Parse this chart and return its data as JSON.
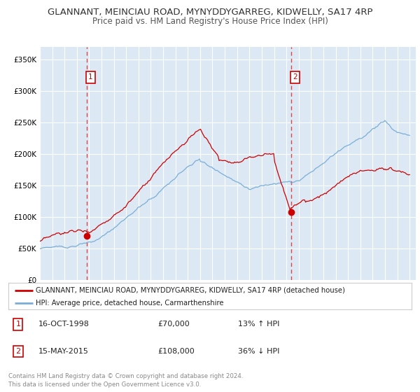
{
  "title": "GLANNANT, MEINCIAU ROAD, MYNYDDYGARREG, KIDWELLY, SA17 4RP",
  "subtitle": "Price paid vs. HM Land Registry's House Price Index (HPI)",
  "title_fontsize": 9.5,
  "subtitle_fontsize": 8.5,
  "ylim": [
    0,
    370000
  ],
  "yticks": [
    0,
    50000,
    100000,
    150000,
    200000,
    250000,
    300000,
    350000
  ],
  "ytick_labels": [
    "£0",
    "£50K",
    "£100K",
    "£150K",
    "£200K",
    "£250K",
    "£300K",
    "£350K"
  ],
  "xlim_start": 1995.0,
  "xlim_end": 2025.5,
  "background_color": "#ffffff",
  "plot_bg_color": "#dce9f5",
  "grid_color": "#ffffff",
  "red_line_color": "#cc0000",
  "blue_line_color": "#7aaed6",
  "vline_color": "#dd4444",
  "sale1_x": 1998.79,
  "sale1_y": 70000,
  "sale2_x": 2015.37,
  "sale2_y": 108000,
  "legend_label1": "GLANNANT, MEINCIAU ROAD, MYNYDDYGARREG, KIDWELLY, SA17 4RP (detached house)",
  "legend_label2": "HPI: Average price, detached house, Carmarthenshire",
  "annotation1_num": "1",
  "annotation1_date": "16-OCT-1998",
  "annotation1_price": "£70,000",
  "annotation1_hpi": "13% ↑ HPI",
  "annotation2_num": "2",
  "annotation2_date": "15-MAY-2015",
  "annotation2_price": "£108,000",
  "annotation2_hpi": "36% ↓ HPI",
  "footer1": "Contains HM Land Registry data © Crown copyright and database right 2024.",
  "footer2": "This data is licensed under the Open Government Licence v3.0."
}
